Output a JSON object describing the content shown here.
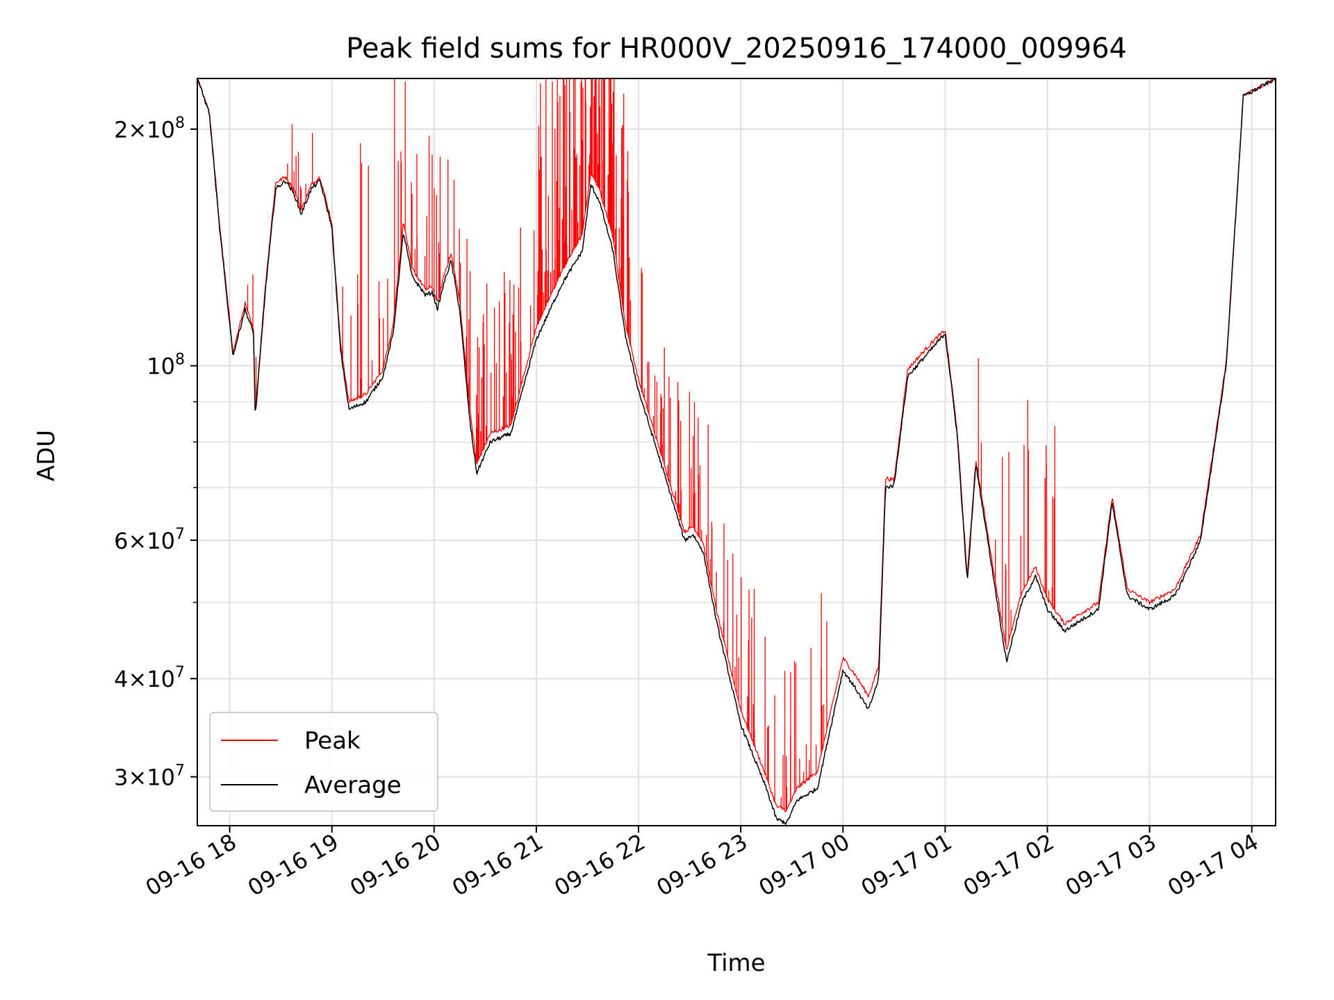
{
  "chart_data": {
    "type": "line",
    "title": "Peak field sums for HR000V_20250916_174000_009964",
    "xlabel": "Time",
    "ylabel": "ADU",
    "x_scale": "time",
    "y_scale": "log",
    "xlim": [
      "2025-09-16 17:41",
      "2025-09-17 04:14"
    ],
    "ylim": [
      26000000,
      232000000
    ],
    "grid": true,
    "legend_position": "lower-left",
    "x_ticks": [
      {
        "t": "2025-09-16 18:00",
        "label": "09-16 18"
      },
      {
        "t": "2025-09-16 19:00",
        "label": "09-16 19"
      },
      {
        "t": "2025-09-16 20:00",
        "label": "09-16 20"
      },
      {
        "t": "2025-09-16 21:00",
        "label": "09-16 21"
      },
      {
        "t": "2025-09-16 22:00",
        "label": "09-16 22"
      },
      {
        "t": "2025-09-16 23:00",
        "label": "09-16 23"
      },
      {
        "t": "2025-09-17 00:00",
        "label": "09-17 00"
      },
      {
        "t": "2025-09-17 01:00",
        "label": "09-17 01"
      },
      {
        "t": "2025-09-17 02:00",
        "label": "09-17 02"
      },
      {
        "t": "2025-09-17 03:00",
        "label": "09-17 03"
      },
      {
        "t": "2025-09-17 04:00",
        "label": "09-17 04"
      }
    ],
    "y_major_ticks": [
      {
        "v": 30000000,
        "mant": "3",
        "exp": "7"
      },
      {
        "v": 40000000,
        "mant": "4",
        "exp": "7"
      },
      {
        "v": 60000000,
        "mant": "6",
        "exp": "7"
      },
      {
        "v": 100000000,
        "mant": "",
        "exp": "8"
      },
      {
        "v": 200000000,
        "mant": "2",
        "exp": "8"
      }
    ],
    "y_minor_ticks": [
      50000000,
      70000000,
      80000000,
      90000000
    ],
    "series": [
      {
        "name": "Average",
        "color": "#000000",
        "points": [
          [
            "2025-09-16 17:41",
            232000000
          ],
          [
            "2025-09-16 17:48",
            210000000
          ],
          [
            "2025-09-16 17:54",
            150000000
          ],
          [
            "2025-09-16 18:02",
            103000000
          ],
          [
            "2025-09-16 18:09",
            118000000
          ],
          [
            "2025-09-16 18:14",
            110000000
          ],
          [
            "2025-09-16 18:15",
            86000000
          ],
          [
            "2025-09-16 18:21",
            125000000
          ],
          [
            "2025-09-16 18:27",
            168000000
          ],
          [
            "2025-09-16 18:33",
            172000000
          ],
          [
            "2025-09-16 18:38",
            165000000
          ],
          [
            "2025-09-16 18:42",
            156000000
          ],
          [
            "2025-09-16 18:48",
            168000000
          ],
          [
            "2025-09-16 18:53",
            172000000
          ],
          [
            "2025-09-16 19:00",
            150000000
          ],
          [
            "2025-09-16 19:05",
            105000000
          ],
          [
            "2025-09-16 19:10",
            88000000
          ],
          [
            "2025-09-16 19:20",
            90000000
          ],
          [
            "2025-09-16 19:30",
            97000000
          ],
          [
            "2025-09-16 19:36",
            110000000
          ],
          [
            "2025-09-16 19:42",
            148000000
          ],
          [
            "2025-09-16 19:47",
            130000000
          ],
          [
            "2025-09-16 19:55",
            123000000
          ],
          [
            "2025-09-16 19:59",
            124000000
          ],
          [
            "2025-09-16 20:02",
            118000000
          ],
          [
            "2025-09-16 20:06",
            128000000
          ],
          [
            "2025-09-16 20:10",
            136000000
          ],
          [
            "2025-09-16 20:15",
            118000000
          ],
          [
            "2025-09-16 20:21",
            85000000
          ],
          [
            "2025-09-16 20:25",
            73000000
          ],
          [
            "2025-09-16 20:33",
            80000000
          ],
          [
            "2025-09-16 20:45",
            82000000
          ],
          [
            "2025-09-16 21:00",
            108000000
          ],
          [
            "2025-09-16 21:15",
            127000000
          ],
          [
            "2025-09-16 21:27",
            140000000
          ],
          [
            "2025-09-16 21:32",
            170000000
          ],
          [
            "2025-09-16 21:37",
            162000000
          ],
          [
            "2025-09-16 21:45",
            140000000
          ],
          [
            "2025-09-16 21:52",
            110000000
          ],
          [
            "2025-09-16 22:00",
            93000000
          ],
          [
            "2025-09-16 22:15",
            73000000
          ],
          [
            "2025-09-16 22:27",
            60000000
          ],
          [
            "2025-09-16 22:32",
            61000000
          ],
          [
            "2025-09-16 22:38",
            58000000
          ],
          [
            "2025-09-16 22:46",
            47000000
          ],
          [
            "2025-09-16 23:00",
            35000000
          ],
          [
            "2025-09-16 23:15",
            29000000
          ],
          [
            "2025-09-16 23:21",
            26500000
          ],
          [
            "2025-09-16 23:27",
            26200000
          ],
          [
            "2025-09-16 23:33",
            28000000
          ],
          [
            "2025-09-16 23:45",
            29000000
          ],
          [
            "2025-09-17 00:00",
            41000000
          ],
          [
            "2025-09-17 00:07",
            39000000
          ],
          [
            "2025-09-17 00:15",
            36500000
          ],
          [
            "2025-09-17 00:21",
            40000000
          ],
          [
            "2025-09-17 00:25",
            70000000
          ],
          [
            "2025-09-17 00:30",
            70500000
          ],
          [
            "2025-09-17 00:38",
            97000000
          ],
          [
            "2025-09-17 00:52",
            105000000
          ],
          [
            "2025-09-17 01:00",
            110000000
          ],
          [
            "2025-09-17 01:07",
            82000000
          ],
          [
            "2025-09-17 01:13",
            53000000
          ],
          [
            "2025-09-17 01:18",
            75000000
          ],
          [
            "2025-09-17 01:24",
            62000000
          ],
          [
            "2025-09-17 01:36",
            42000000
          ],
          [
            "2025-09-17 01:45",
            50000000
          ],
          [
            "2025-09-17 01:53",
            54000000
          ],
          [
            "2025-09-17 02:00",
            49000000
          ],
          [
            "2025-09-17 02:10",
            46000000
          ],
          [
            "2025-09-17 02:20",
            47500000
          ],
          [
            "2025-09-17 02:30",
            49000000
          ],
          [
            "2025-09-17 02:38",
            67000000
          ],
          [
            "2025-09-17 02:47",
            51000000
          ],
          [
            "2025-09-17 03:00",
            49000000
          ],
          [
            "2025-09-17 03:15",
            51000000
          ],
          [
            "2025-09-17 03:30",
            60000000
          ],
          [
            "2025-09-17 03:45",
            100000000
          ],
          [
            "2025-09-17 03:55",
            220000000
          ],
          [
            "2025-09-17 04:14",
            232000000
          ]
        ]
      },
      {
        "name": "Peak",
        "color": "#ff0000",
        "points": [
          [
            "2025-09-16 17:41",
            232000000
          ],
          [
            "2025-09-16 17:48",
            211000000
          ],
          [
            "2025-09-16 17:54",
            152000000
          ],
          [
            "2025-09-16 18:02",
            104000000
          ],
          [
            "2025-09-16 18:09",
            120000000
          ],
          [
            "2025-09-16 18:14",
            111000000
          ],
          [
            "2025-09-16 18:15",
            87000000
          ],
          [
            "2025-09-16 18:21",
            127000000
          ],
          [
            "2025-09-16 18:27",
            171000000
          ],
          [
            "2025-09-16 18:33",
            174000000
          ],
          [
            "2025-09-16 18:38",
            167000000
          ],
          [
            "2025-09-16 18:42",
            158000000
          ],
          [
            "2025-09-16 18:48",
            170000000
          ],
          [
            "2025-09-16 18:53",
            174000000
          ],
          [
            "2025-09-16 19:00",
            152000000
          ],
          [
            "2025-09-16 19:05",
            107000000
          ],
          [
            "2025-09-16 19:10",
            90000000
          ],
          [
            "2025-09-16 19:20",
            92000000
          ],
          [
            "2025-09-16 19:30",
            99000000
          ],
          [
            "2025-09-16 19:36",
            113000000
          ],
          [
            "2025-09-16 19:42",
            153000000
          ],
          [
            "2025-09-16 19:47",
            133000000
          ],
          [
            "2025-09-16 19:55",
            125000000
          ],
          [
            "2025-09-16 19:59",
            126000000
          ],
          [
            "2025-09-16 20:02",
            120000000
          ],
          [
            "2025-09-16 20:06",
            131000000
          ],
          [
            "2025-09-16 20:10",
            139000000
          ],
          [
            "2025-09-16 20:15",
            121000000
          ],
          [
            "2025-09-16 20:21",
            88000000
          ],
          [
            "2025-09-16 20:25",
            75000000
          ],
          [
            "2025-09-16 20:33",
            82000000
          ],
          [
            "2025-09-16 20:45",
            84000000
          ],
          [
            "2025-09-16 21:00",
            112000000
          ],
          [
            "2025-09-16 21:15",
            132000000
          ],
          [
            "2025-09-16 21:27",
            147000000
          ],
          [
            "2025-09-16 21:32",
            176000000
          ],
          [
            "2025-09-16 21:37",
            168000000
          ],
          [
            "2025-09-16 21:45",
            146000000
          ],
          [
            "2025-09-16 21:52",
            114000000
          ],
          [
            "2025-09-16 22:00",
            96000000
          ],
          [
            "2025-09-16 22:15",
            75000000
          ],
          [
            "2025-09-16 22:27",
            61500000
          ],
          [
            "2025-09-16 22:32",
            62500000
          ],
          [
            "2025-09-16 22:38",
            59500000
          ],
          [
            "2025-09-16 22:46",
            48500000
          ],
          [
            "2025-09-16 23:00",
            36500000
          ],
          [
            "2025-09-16 23:15",
            30000000
          ],
          [
            "2025-09-16 23:21",
            27500000
          ],
          [
            "2025-09-16 23:27",
            27200000
          ],
          [
            "2025-09-16 23:33",
            29000000
          ],
          [
            "2025-09-16 23:45",
            30500000
          ],
          [
            "2025-09-17 00:00",
            42500000
          ],
          [
            "2025-09-17 00:07",
            40500000
          ],
          [
            "2025-09-17 00:15",
            38000000
          ],
          [
            "2025-09-17 00:21",
            41500000
          ],
          [
            "2025-09-17 00:25",
            72000000
          ],
          [
            "2025-09-17 00:30",
            71500000
          ],
          [
            "2025-09-17 00:38",
            99000000
          ],
          [
            "2025-09-17 00:52",
            107000000
          ],
          [
            "2025-09-17 01:00",
            111000000
          ],
          [
            "2025-09-17 01:07",
            83000000
          ],
          [
            "2025-09-17 01:13",
            54000000
          ],
          [
            "2025-09-17 01:18",
            76000000
          ],
          [
            "2025-09-17 01:24",
            63000000
          ],
          [
            "2025-09-17 01:36",
            43500000
          ],
          [
            "2025-09-17 01:45",
            51500000
          ],
          [
            "2025-09-17 01:53",
            55500000
          ],
          [
            "2025-09-17 02:00",
            50500000
          ],
          [
            "2025-09-17 02:10",
            47000000
          ],
          [
            "2025-09-17 02:20",
            48500000
          ],
          [
            "2025-09-17 02:30",
            50000000
          ],
          [
            "2025-09-17 02:38",
            68000000
          ],
          [
            "2025-09-17 02:47",
            52000000
          ],
          [
            "2025-09-17 03:00",
            50000000
          ],
          [
            "2025-09-17 03:15",
            52000000
          ],
          [
            "2025-09-17 03:30",
            61000000
          ],
          [
            "2025-09-17 03:45",
            101000000
          ],
          [
            "2025-09-17 03:55",
            221000000
          ],
          [
            "2025-09-17 04:14",
            232000000
          ]
        ],
        "spike_bursts": [
          {
            "from": "2025-09-16 18:05",
            "to": "2025-09-16 18:55",
            "count": 12,
            "min_factor": 1.03,
            "max_factor": 1.2
          },
          {
            "from": "2025-09-16 19:00",
            "to": "2025-09-16 19:40",
            "count": 18,
            "min_factor": 1.05,
            "max_factor": 2.2
          },
          {
            "from": "2025-09-16 19:40",
            "to": "2025-09-16 20:15",
            "count": 22,
            "min_factor": 1.05,
            "max_factor": 1.6
          },
          {
            "from": "2025-09-16 20:15",
            "to": "2025-09-16 21:00",
            "count": 45,
            "min_factor": 1.05,
            "max_factor": 1.6
          },
          {
            "from": "2025-09-16 21:00",
            "to": "2025-09-16 21:55",
            "count": 110,
            "min_factor": 1.05,
            "max_factor": 2.0
          },
          {
            "from": "2025-09-16 21:55",
            "to": "2025-09-16 22:45",
            "count": 45,
            "min_factor": 1.03,
            "max_factor": 1.55
          },
          {
            "from": "2025-09-16 22:45",
            "to": "2025-09-16 23:55",
            "count": 40,
            "min_factor": 1.03,
            "max_factor": 1.6
          },
          {
            "from": "2025-09-17 01:10",
            "to": "2025-09-17 02:05",
            "count": 20,
            "min_factor": 1.03,
            "max_factor": 1.75
          }
        ]
      }
    ],
    "legend": [
      {
        "name": "Peak",
        "color": "#ff0000"
      },
      {
        "name": "Average",
        "color": "#000000"
      }
    ]
  }
}
